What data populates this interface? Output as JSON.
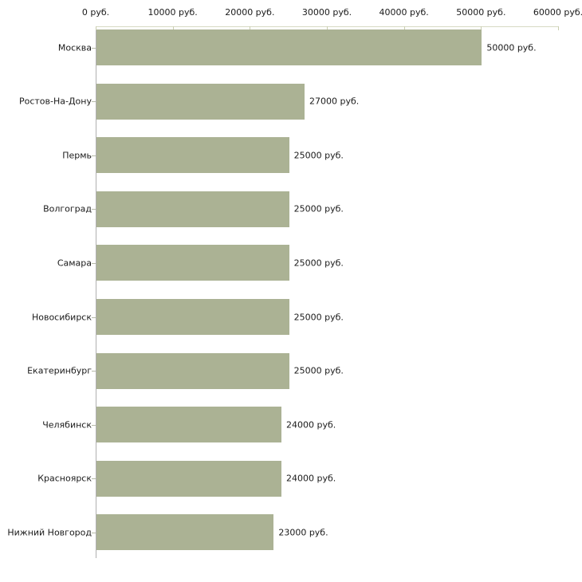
{
  "chart_data": {
    "type": "bar",
    "orientation": "horizontal",
    "title": "",
    "xlabel": "",
    "ylabel": "",
    "unit": "руб.",
    "categories": [
      "Москва",
      "Ростов-На-Дону",
      "Пермь",
      "Волгоград",
      "Самара",
      "Новосибирск",
      "Екатеринбург",
      "Челябинск",
      "Красноярск",
      "Нижний Новгород"
    ],
    "values": [
      50000,
      27000,
      25000,
      25000,
      25000,
      25000,
      25000,
      24000,
      24000,
      23000
    ],
    "value_labels": [
      "50000 руб.",
      "27000 руб.",
      "25000 руб.",
      "25000 руб.",
      "25000 руб.",
      "25000 руб.",
      "25000 руб.",
      "24000 руб.",
      "24000 руб.",
      "23000 руб."
    ],
    "x_tick_values": [
      0,
      10000,
      20000,
      30000,
      40000,
      50000,
      60000
    ],
    "x_tick_labels": [
      "0 руб.",
      "10000 руб.",
      "20000 руб.",
      "30000 руб.",
      "40000 руб.",
      "50000 руб.",
      "60000 руб."
    ],
    "xlim": [
      0,
      60000
    ],
    "grid": false,
    "legend": false,
    "colors": {
      "bar": "#abb294",
      "x_axis_line": "#d7d9c3",
      "x_tick": "#c9cdb0",
      "y_axis_line": "#b0b0b0",
      "y_tick": "#b6baa8",
      "text": "#1a1a1a"
    }
  }
}
